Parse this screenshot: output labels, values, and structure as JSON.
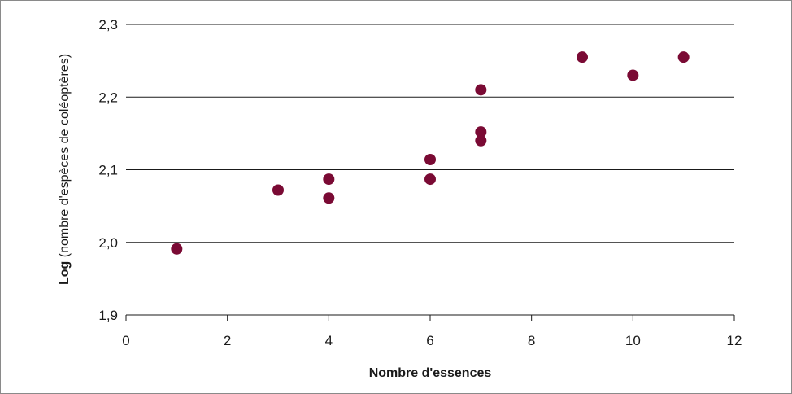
{
  "chart_data": {
    "type": "scatter",
    "xlabel": "Nombre d'essences",
    "ylabel_bold": "Log",
    "ylabel_rest": " (nombre d'espèces de coléoptères)",
    "xlim": [
      0,
      12
    ],
    "ylim": [
      1.9,
      2.3
    ],
    "x_ticks": [
      0,
      2,
      4,
      6,
      8,
      10,
      12
    ],
    "x_tick_labels": [
      "0",
      "2",
      "4",
      "6",
      "8",
      "10",
      "12"
    ],
    "y_ticks": [
      1.9,
      2.0,
      2.1,
      2.2,
      2.3
    ],
    "y_tick_labels": [
      "1,9",
      "2,0",
      "2,1",
      "2,2",
      "2,3"
    ],
    "grid": "horizontal",
    "point_color": "#7a0a34",
    "points": [
      {
        "x": 1,
        "y": 1.991
      },
      {
        "x": 3,
        "y": 2.072
      },
      {
        "x": 4,
        "y": 2.087
      },
      {
        "x": 4,
        "y": 2.061
      },
      {
        "x": 6,
        "y": 2.114
      },
      {
        "x": 6,
        "y": 2.087
      },
      {
        "x": 7,
        "y": 2.21
      },
      {
        "x": 7,
        "y": 2.152
      },
      {
        "x": 7,
        "y": 2.14
      },
      {
        "x": 9,
        "y": 2.255
      },
      {
        "x": 10,
        "y": 2.23
      },
      {
        "x": 11,
        "y": 2.255
      }
    ]
  }
}
